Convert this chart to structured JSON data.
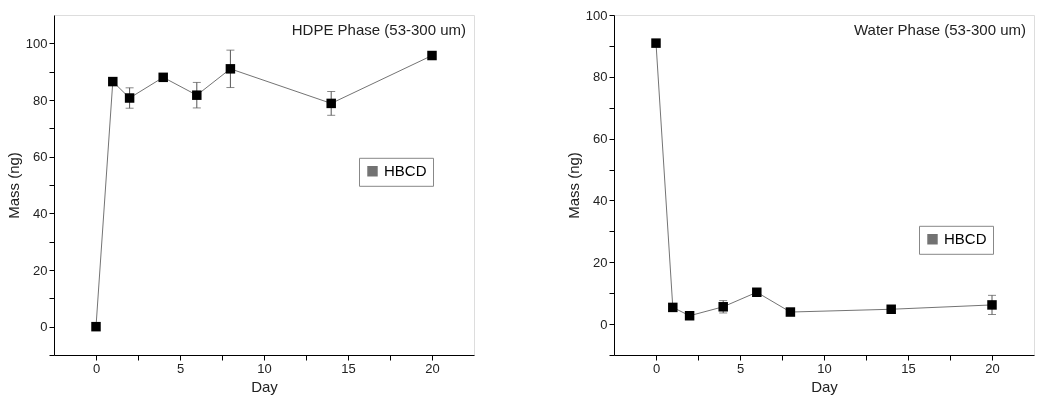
{
  "chart_data": [
    {
      "type": "line",
      "title": "HDPE Phase (53-300 um)",
      "xlabel": "Day",
      "ylabel": "Mass (ng)",
      "x": [
        0,
        1,
        2,
        4,
        6,
        8,
        14,
        20
      ],
      "series": [
        {
          "name": "HBCD",
          "color": "#000000",
          "values": [
            0,
            86.5,
            80.7,
            88,
            81.7,
            91,
            78.8,
            95.7
          ],
          "errors": [
            null,
            1.2,
            3.6,
            1,
            4.5,
            6.6,
            4.2,
            null
          ]
        }
      ],
      "xlim": [
        -2.5,
        22.5
      ],
      "ylim": [
        -10,
        110
      ],
      "xticks": [
        0,
        {
          "value": 2.5,
          "label": null
        },
        5,
        {
          "value": 7.5,
          "label": null
        },
        10,
        {
          "value": 12.5,
          "label": null
        },
        15,
        {
          "value": 17.5,
          "label": null
        },
        20
      ],
      "yticks": [
        {
          "value": -10,
          "label": null
        },
        0,
        {
          "value": 10,
          "label": null
        },
        20,
        {
          "value": 30,
          "label": null
        },
        40,
        {
          "value": 50,
          "label": null
        },
        60,
        {
          "value": 70,
          "label": null
        },
        80,
        {
          "value": 90,
          "label": null
        },
        100
      ],
      "marker": "square",
      "line_style": "solid",
      "legend": "right",
      "grid": false
    },
    {
      "type": "line",
      "title": "Water Phase (53-300 um)",
      "xlabel": "Day",
      "ylabel": "Mass (ng)",
      "x": [
        0,
        1,
        2,
        4,
        6,
        8,
        14,
        20
      ],
      "series": [
        {
          "name": "HBCD",
          "color": "#000000",
          "values": [
            90.9,
            5.4,
            2.7,
            5.6,
            10.3,
            3.9,
            4.8,
            6.2
          ],
          "errors": [
            null,
            null,
            null,
            2,
            0.5,
            1,
            null,
            3.1
          ]
        }
      ],
      "xlim": [
        -2.5,
        22.5
      ],
      "ylim": [
        -10,
        100
      ],
      "xticks": [
        0,
        {
          "value": 2.5,
          "label": null
        },
        5,
        {
          "value": 7.5,
          "label": null
        },
        10,
        {
          "value": 12.5,
          "label": null
        },
        15,
        {
          "value": 17.5,
          "label": null
        },
        20
      ],
      "yticks": [
        {
          "value": -10,
          "label": null
        },
        0,
        {
          "value": 10,
          "label": null
        },
        20,
        {
          "value": 30,
          "label": null
        },
        40,
        {
          "value": 50,
          "label": null
        },
        60,
        {
          "value": 70,
          "label": null
        },
        80,
        {
          "value": 90,
          "label": null
        },
        100
      ],
      "marker": "square",
      "line_style": "solid",
      "legend": "right",
      "grid": false
    }
  ]
}
